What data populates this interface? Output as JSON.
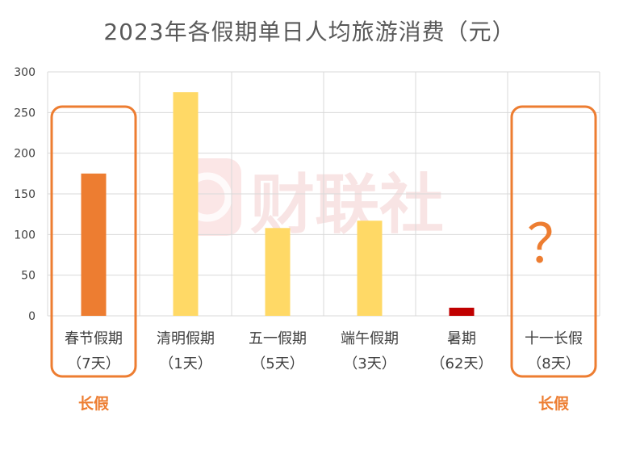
{
  "title": "2023年各假期单日人均旅游消费（元）",
  "watermark": "财联社",
  "chart_data": {
    "type": "bar",
    "title": "2023年各假期单日人均旅游消费（元）",
    "categories": [
      [
        "春节假期",
        "（7天）"
      ],
      [
        "清明假期",
        "（1天）"
      ],
      [
        "五一假期",
        "（5天）"
      ],
      [
        "端午假期",
        "（3天）"
      ],
      [
        "暑期",
        "（62天）"
      ],
      [
        "十一长假",
        "（8天）"
      ]
    ],
    "values": [
      175,
      275,
      108,
      117,
      10,
      null
    ],
    "bar_colors": [
      "#ED7D31",
      "#FFD966",
      "#FFD966",
      "#FFD966",
      "#C00000",
      null
    ],
    "ylim": [
      0,
      300
    ],
    "yticks": [
      0,
      50,
      100,
      150,
      200,
      250,
      300
    ],
    "grid": true,
    "unknown_marker": "？",
    "highlight_label": "长假",
    "highlighted_categories": [
      0,
      5
    ],
    "highlight_color": "#ED7D31"
  }
}
